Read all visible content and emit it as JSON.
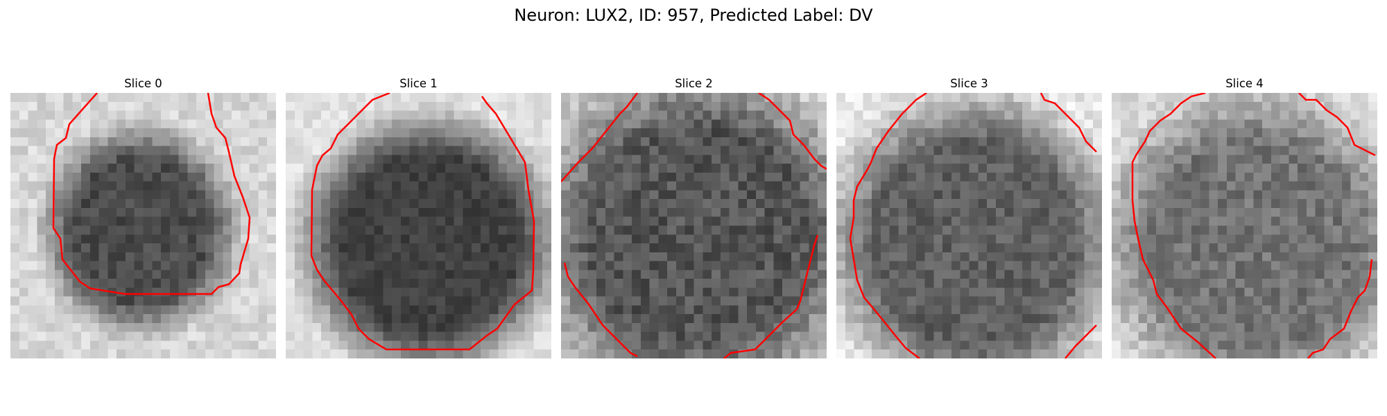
{
  "figure": {
    "title": "Neuron: LUX2, ID: 957, Predicted Label: DV"
  },
  "colors": {
    "contour": "#ff0000",
    "background": "#ffffff"
  },
  "panels": [
    {
      "title": "Slice 0"
    },
    {
      "title": "Slice 1"
    },
    {
      "title": "Slice 2"
    },
    {
      "title": "Slice 3"
    },
    {
      "title": "Slice 4"
    }
  ]
}
